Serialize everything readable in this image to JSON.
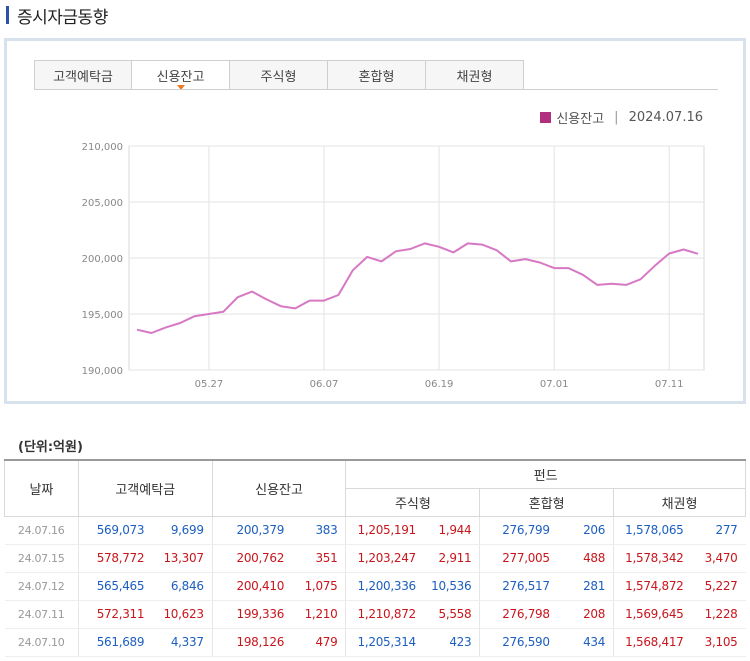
{
  "page_title": "증시자금동향",
  "tabs": [
    {
      "label": "고객예탁금",
      "active": false
    },
    {
      "label": "신용잔고",
      "active": true
    },
    {
      "label": "주식형",
      "active": false
    },
    {
      "label": "혼합형",
      "active": false
    },
    {
      "label": "채권형",
      "active": false
    }
  ],
  "legend": {
    "series_name": "신용잔고",
    "date": "2024.07.16",
    "color": "#b0307f"
  },
  "chart_data": {
    "type": "line",
    "title": "",
    "xlabel": "",
    "ylabel": "",
    "ylim": [
      190000,
      210000
    ],
    "y_ticks": [
      "190,000",
      "195,000",
      "200,000",
      "205,000",
      "210,000"
    ],
    "x_tick_labels": [
      "05.27",
      "06.07",
      "06.19",
      "07.01",
      "07.11"
    ],
    "line_color": "#d778c4",
    "grid": true,
    "series": [
      {
        "name": "신용잔고",
        "values": [
          193600,
          193300,
          193800,
          194200,
          194800,
          195000,
          195200,
          196500,
          197000,
          196300,
          195700,
          195500,
          196200,
          196200,
          196700,
          198900,
          200100,
          199700,
          200600,
          200800,
          201300,
          201000,
          200500,
          201300,
          201200,
          200700,
          199700,
          199900,
          199600,
          199100,
          199100,
          198500,
          197600,
          197700,
          197600,
          198100,
          199300,
          200400,
          200762,
          200379
        ]
      }
    ]
  },
  "unit_label": "(단위:억원)",
  "table": {
    "headers": {
      "date": "날짜",
      "deposit": "고객예탁금",
      "credit": "신용잔고",
      "fund": "펀드",
      "stock": "주식형",
      "mixed": "혼합형",
      "bond": "채권형"
    },
    "rows": [
      {
        "date": "24.07.16",
        "deposit": "569,073",
        "deposit_chg": "9,699",
        "credit": "200,379",
        "credit_chg": "383",
        "stock": "1,205,191",
        "stock_chg": "1,944",
        "mixed": "276,799",
        "mixed_chg": "206",
        "bond": "1,578,065",
        "bond_chg": "277"
      },
      {
        "date": "24.07.15",
        "deposit": "578,772",
        "deposit_chg": "13,307",
        "credit": "200,762",
        "credit_chg": "351",
        "stock": "1,203,247",
        "stock_chg": "2,911",
        "mixed": "277,005",
        "mixed_chg": "488",
        "bond": "1,578,342",
        "bond_chg": "3,470"
      },
      {
        "date": "24.07.12",
        "deposit": "565,465",
        "deposit_chg": "6,846",
        "credit": "200,410",
        "credit_chg": "1,075",
        "stock": "1,200,336",
        "stock_chg": "10,536",
        "mixed": "276,517",
        "mixed_chg": "281",
        "bond": "1,574,872",
        "bond_chg": "5,227"
      },
      {
        "date": "24.07.11",
        "deposit": "572,311",
        "deposit_chg": "10,623",
        "credit": "199,336",
        "credit_chg": "1,210",
        "stock": "1,210,872",
        "stock_chg": "5,558",
        "mixed": "276,798",
        "mixed_chg": "208",
        "bond": "1,569,645",
        "bond_chg": "1,228"
      },
      {
        "date": "24.07.10",
        "deposit": "561,689",
        "deposit_chg": "4,337",
        "credit": "198,126",
        "credit_chg": "479",
        "stock": "1,205,314",
        "stock_chg": "423",
        "mixed": "276,590",
        "mixed_chg": "434",
        "bond": "1,568,417",
        "bond_chg": "3,105"
      }
    ],
    "row_colors": [
      [
        "blue",
        "blue",
        "blue",
        "blue",
        "red",
        "red",
        "blue",
        "blue",
        "blue",
        "blue"
      ],
      [
        "red",
        "red",
        "red",
        "red",
        "red",
        "red",
        "red",
        "red",
        "red",
        "red"
      ],
      [
        "blue",
        "blue",
        "red",
        "red",
        "blue",
        "blue",
        "blue",
        "blue",
        "red",
        "red"
      ],
      [
        "red",
        "red",
        "red",
        "red",
        "red",
        "red",
        "red",
        "red",
        "red",
        "red"
      ],
      [
        "blue",
        "blue",
        "red",
        "red",
        "blue",
        "blue",
        "blue",
        "blue",
        "red",
        "red"
      ]
    ]
  }
}
